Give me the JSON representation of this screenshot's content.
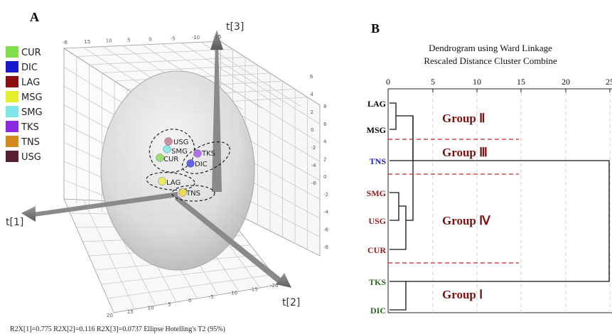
{
  "panel_a": {
    "label": "A",
    "axes": {
      "t1": "t[1]",
      "t2": "t[2]",
      "t3": "t[3]"
    },
    "legend": [
      {
        "name": "CUR",
        "color": "#7fe04a"
      },
      {
        "name": "DIC",
        "color": "#1a1acc"
      },
      {
        "name": "LAG",
        "color": "#8b1010"
      },
      {
        "name": "MSG",
        "color": "#e6ee30"
      },
      {
        "name": "SMG",
        "color": "#7de6e6"
      },
      {
        "name": "TKS",
        "color": "#8a2be2"
      },
      {
        "name": "TNS",
        "color": "#d48a1c"
      },
      {
        "name": "USG",
        "color": "#5a1f2e"
      }
    ],
    "points": [
      {
        "name": "USG",
        "color": "#c98f9f"
      },
      {
        "name": "SMG",
        "color": "#8fe6e6"
      },
      {
        "name": "TKS",
        "color": "#b070f0"
      },
      {
        "name": "CUR",
        "color": "#9ae070"
      },
      {
        "name": "DIC",
        "color": "#6060ee"
      },
      {
        "name": "LAG",
        "color": "#ecec60"
      },
      {
        "name": "TNS",
        "color": "#ecd850"
      }
    ],
    "tick_labels": {
      "back_top": [
        "-6",
        "15",
        "10",
        "5",
        "0",
        "-5",
        "-10",
        "-15"
      ],
      "right_side": [
        "8",
        "6",
        "4",
        "2",
        "0",
        "-2",
        "-4",
        "-6",
        "-8"
      ],
      "bottom_left": [
        "20",
        "15",
        "10",
        "5",
        "0",
        "-5",
        "-10",
        "-15",
        "-20"
      ],
      "right_vertical": [
        "6",
        "4",
        "2",
        "0",
        "-2",
        "-4",
        "-6"
      ]
    },
    "footer": "R2X[1]=0.775   R2X[2]=0.116   R2X[3]=0.0737   Ellipse Hotelling's T2 (95%)"
  },
  "panel_b": {
    "label": "B",
    "title_line1": "Dendrogram using Ward Linkage",
    "title_line2": "Rescaled Distance Cluster Combine",
    "scale_ticks": [
      "0",
      "5",
      "10",
      "15",
      "20",
      "25"
    ],
    "leaves": [
      {
        "name": "LAG",
        "color": "#000000"
      },
      {
        "name": "MSG",
        "color": "#000000"
      },
      {
        "name": "TNS",
        "color": "#1a1acc"
      },
      {
        "name": "SMG",
        "color": "#8b1a1a"
      },
      {
        "name": "USG",
        "color": "#8b1a1a"
      },
      {
        "name": "CUR",
        "color": "#8b1a1a"
      },
      {
        "name": "TKS",
        "color": "#2a6a1a"
      },
      {
        "name": "DIC",
        "color": "#2a6a1a"
      }
    ],
    "groups": [
      "Group Ⅱ",
      "Group Ⅲ",
      "Group Ⅳ",
      "Group Ⅰ"
    ],
    "group_color": "#7a1010"
  }
}
